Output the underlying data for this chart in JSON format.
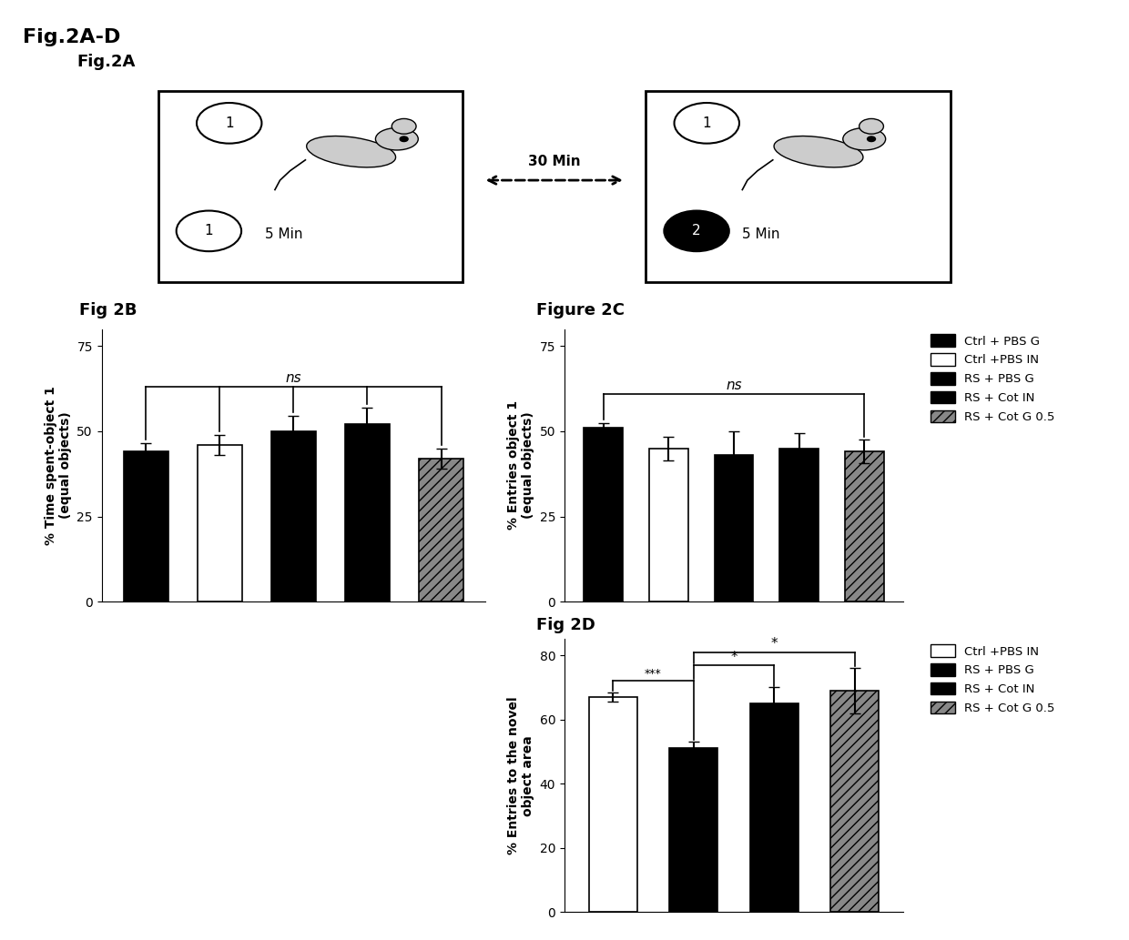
{
  "fig_title": "Fig.2A-D",
  "fig2a_label": "Fig.2A",
  "fig2b_label": "Fig 2B",
  "fig2c_label": "Figure 2C",
  "fig2d_label": "Fig 2D",
  "fig2b_values": [
    44,
    46,
    50,
    52,
    42
  ],
  "fig2b_errors": [
    2.5,
    3.0,
    4.5,
    5.0,
    3.0
  ],
  "fig2b_colors": [
    "#000000",
    "#ffffff",
    "#000000",
    "#000000",
    "#888888"
  ],
  "fig2b_hatches": [
    "///",
    "",
    "",
    "",
    "///"
  ],
  "fig2b_ylabel": "% Time spent-object 1\n(equal objects)",
  "fig2b_ylim": [
    0,
    80
  ],
  "fig2b_yticks": [
    0,
    25,
    50,
    75
  ],
  "fig2c_values": [
    51,
    45,
    43,
    45,
    44
  ],
  "fig2c_errors": [
    1.5,
    3.5,
    7.0,
    4.5,
    3.5
  ],
  "fig2c_colors": [
    "#000000",
    "#ffffff",
    "#000000",
    "#000000",
    "#888888"
  ],
  "fig2c_hatches": [
    "///",
    "",
    "",
    "",
    "///"
  ],
  "fig2c_ylabel": "% Entries object 1\n(equal objects)",
  "fig2c_ylim": [
    0,
    80
  ],
  "fig2c_yticks": [
    0,
    25,
    50,
    75
  ],
  "fig2d_values": [
    67,
    51,
    65,
    69
  ],
  "fig2d_errors": [
    1.5,
    2.0,
    5.0,
    7.0
  ],
  "fig2d_colors": [
    "#ffffff",
    "#000000",
    "#000000",
    "#888888"
  ],
  "fig2d_hatches": [
    "",
    "",
    "",
    "///"
  ],
  "fig2d_ylabel": "% Entries to the novel\nobject area",
  "fig2d_ylim": [
    0,
    85
  ],
  "fig2d_yticks": [
    0,
    20,
    40,
    60,
    80
  ],
  "legend2bc_labels": [
    "Ctrl + PBS G",
    "Ctrl +PBS IN",
    "RS + PBS G",
    "RS + Cot IN",
    "RS + Cot G 0.5"
  ],
  "legend2bc_colors": [
    "#000000",
    "#ffffff",
    "#000000",
    "#000000",
    "#888888"
  ],
  "legend2bc_hatch": [
    "///",
    "",
    "",
    "",
    "///"
  ],
  "legend2d_labels": [
    "Ctrl +PBS IN",
    "RS + PBS G",
    "RS + Cot IN",
    "RS + Cot G 0.5"
  ],
  "legend2d_colors": [
    "#ffffff",
    "#000000",
    "#000000",
    "#888888"
  ],
  "legend2d_hatch": [
    "",
    "",
    "",
    "///"
  ],
  "background_color": "#ffffff",
  "bar_width": 0.6
}
